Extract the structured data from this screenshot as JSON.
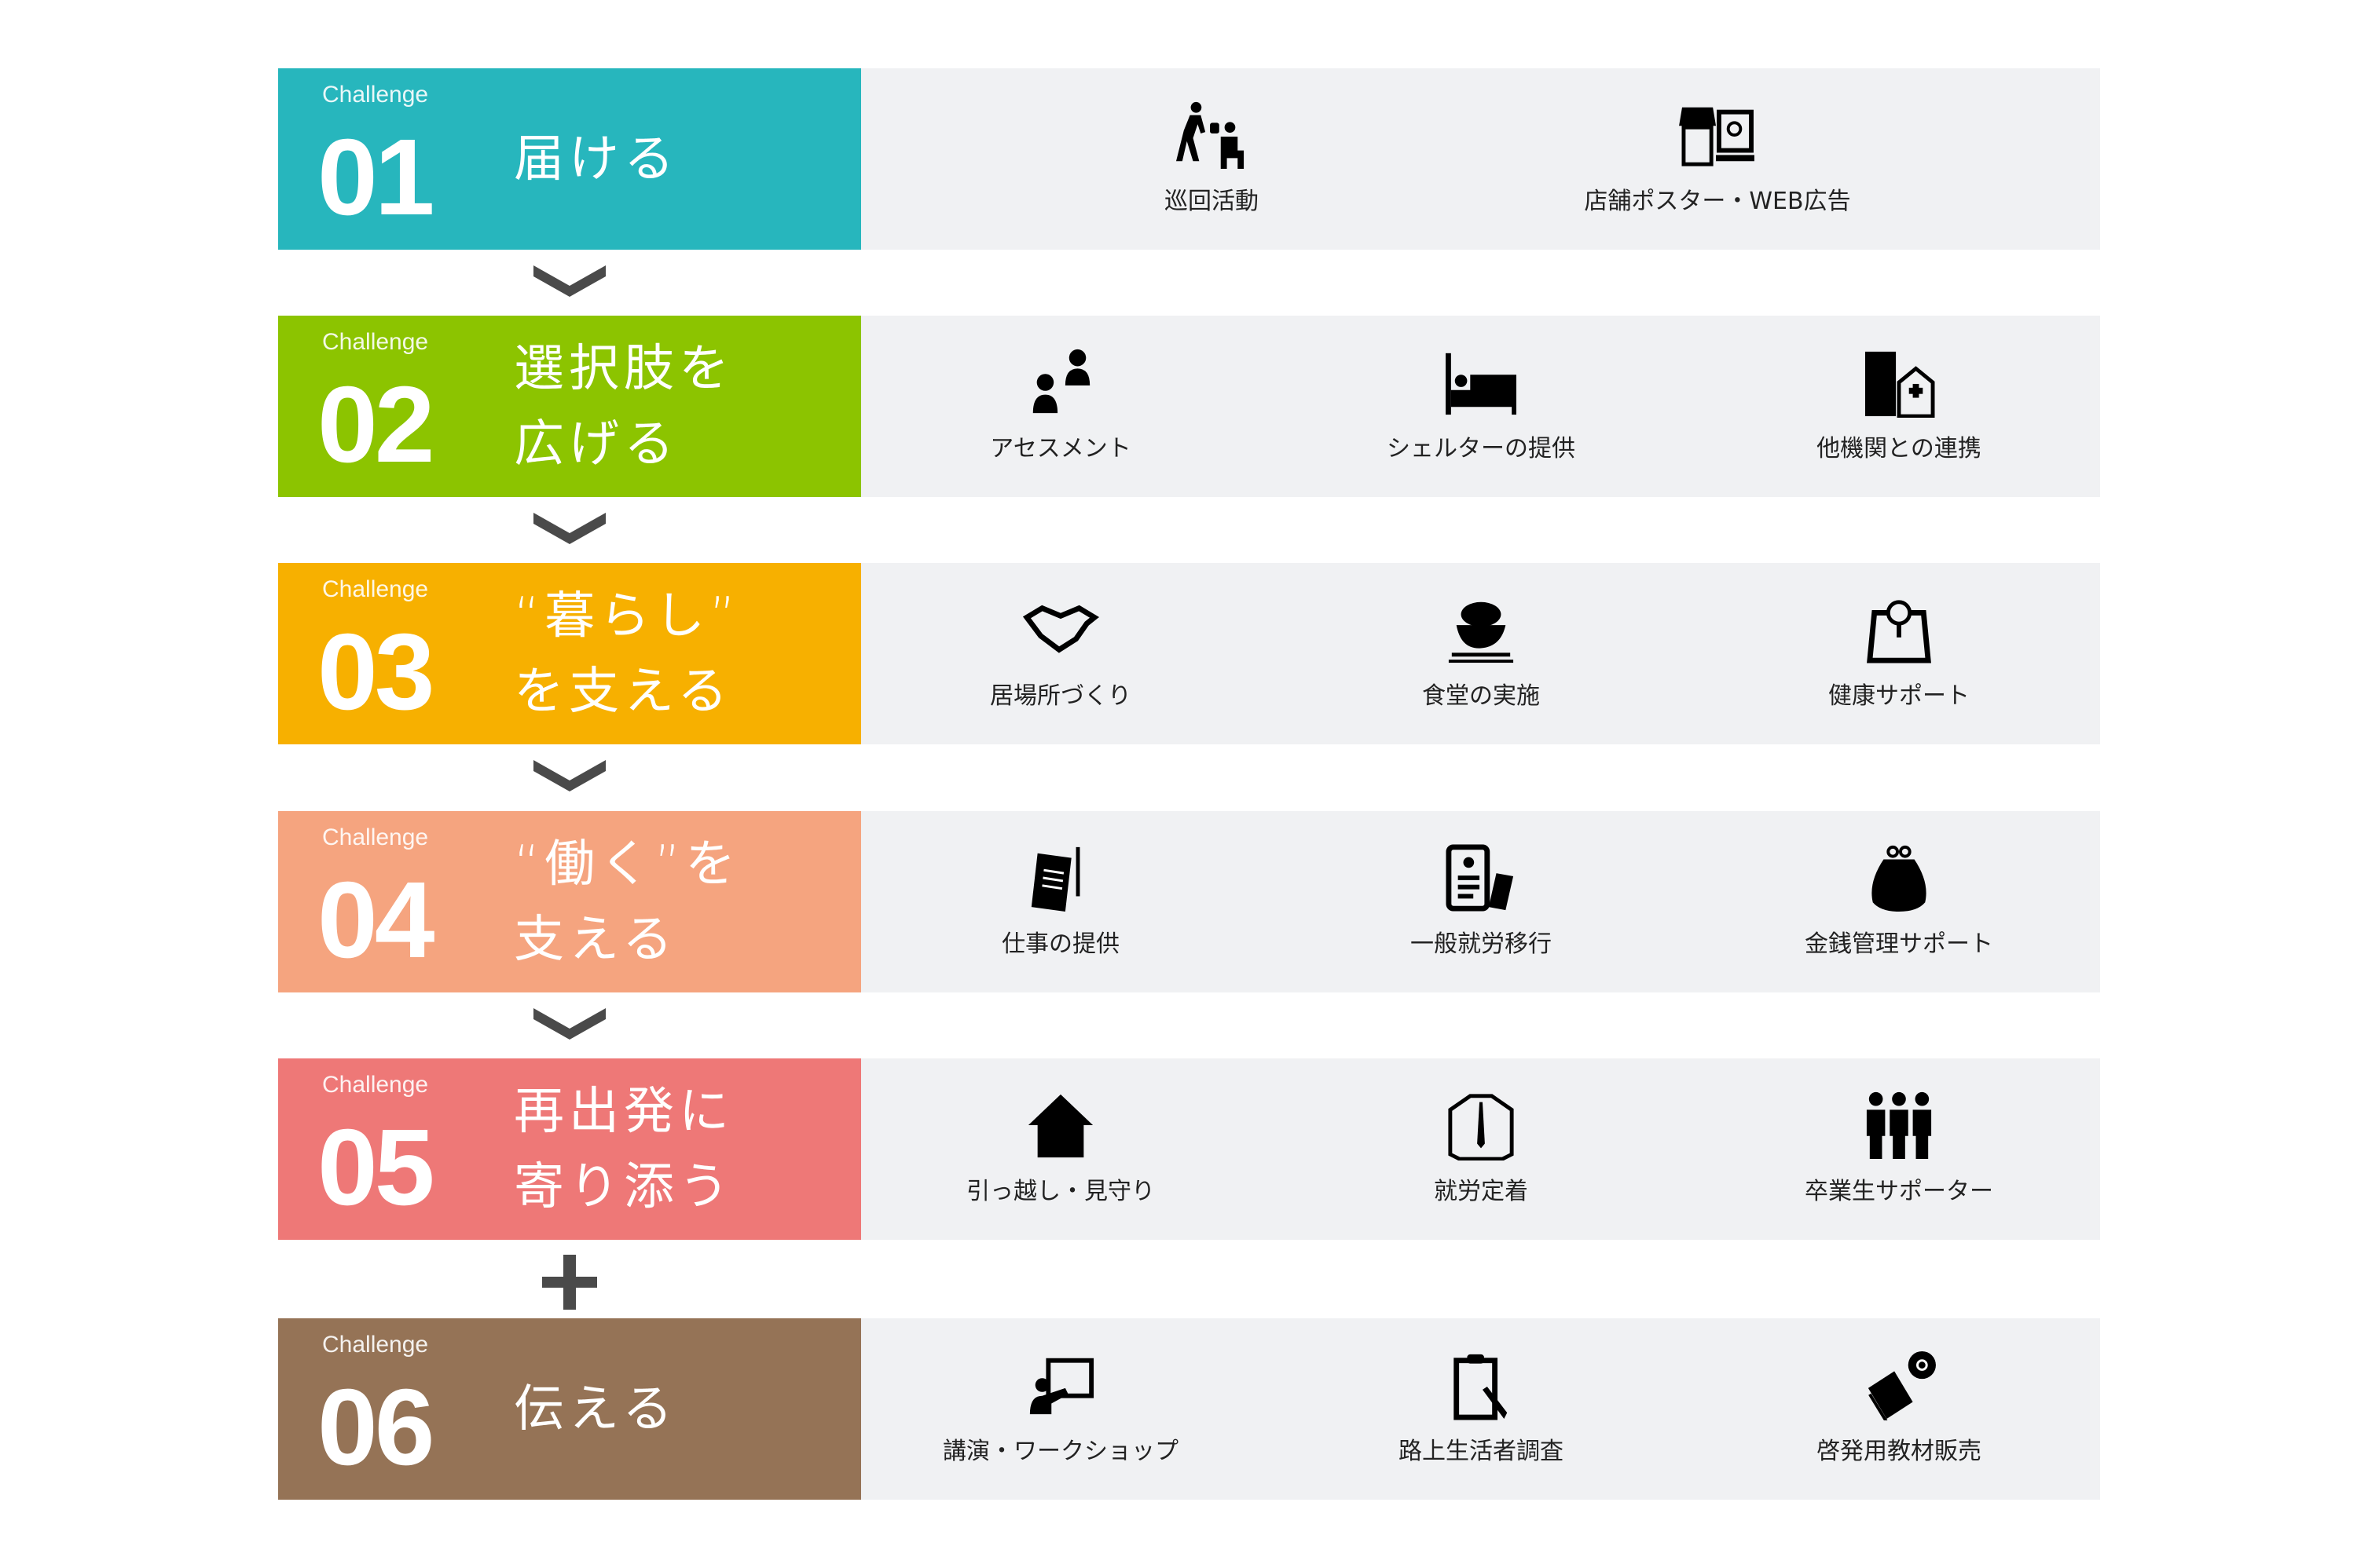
{
  "challenge_label": "Challenge",
  "rows": [
    {
      "num": "01",
      "title": [
        "届ける"
      ],
      "color": "#27b6bd",
      "items": [
        {
          "label": "巡回活動",
          "icon": "outreach-walking-icon"
        },
        {
          "label": "店舗ポスター・WEB広告",
          "icon": "store-and-laptop-icon"
        }
      ]
    },
    {
      "num": "02",
      "title": [
        "選択肢を",
        "広げる"
      ],
      "color": "#8cc400",
      "items": [
        {
          "label": "アセスメント",
          "icon": "people-consultation-icon"
        },
        {
          "label": "シェルターの提供",
          "icon": "bed-icon"
        },
        {
          "label": "他機関との連携",
          "icon": "buildings-hospital-icon"
        }
      ]
    },
    {
      "num": "03",
      "title": [
        "“暮らし”",
        "を支える"
      ],
      "color": "#f7b000",
      "items": [
        {
          "label": "居場所づくり",
          "icon": "handshake-icon"
        },
        {
          "label": "食堂の実施",
          "icon": "rice-bowl-icon"
        },
        {
          "label": "健康サポート",
          "icon": "scale-icon"
        }
      ]
    },
    {
      "num": "04",
      "title": [
        "“働く”を",
        "支える"
      ],
      "color": "#f5a47f",
      "items": [
        {
          "label": "仕事の提供",
          "icon": "document-pen-icon"
        },
        {
          "label": "一般就労移行",
          "icon": "resume-phone-icon"
        },
        {
          "label": "金銭管理サポート",
          "icon": "coin-purse-icon"
        }
      ]
    },
    {
      "num": "05",
      "title": [
        "再出発に",
        "寄り添う"
      ],
      "color": "#ee7877",
      "items": [
        {
          "label": "引っ越し・見守り",
          "icon": "house-icon"
        },
        {
          "label": "就労定着",
          "icon": "shirt-tie-icon"
        },
        {
          "label": "卒業生サポーター",
          "icon": "three-people-icon"
        }
      ]
    },
    {
      "num": "06",
      "title": [
        "伝える"
      ],
      "color": "#957356",
      "items": [
        {
          "label": "講演・ワークショップ",
          "icon": "presentation-icon"
        },
        {
          "label": "路上生活者調査",
          "icon": "clipboard-pen-icon"
        },
        {
          "label": "啓発用教材販売",
          "icon": "book-disc-icon"
        }
      ]
    }
  ],
  "connectors": [
    "chevron-down-icon",
    "chevron-down-icon",
    "chevron-down-icon",
    "chevron-down-icon",
    "plus-icon"
  ],
  "colors": {
    "panel": "#f0f1f3",
    "connector": "#4a4a4a"
  }
}
